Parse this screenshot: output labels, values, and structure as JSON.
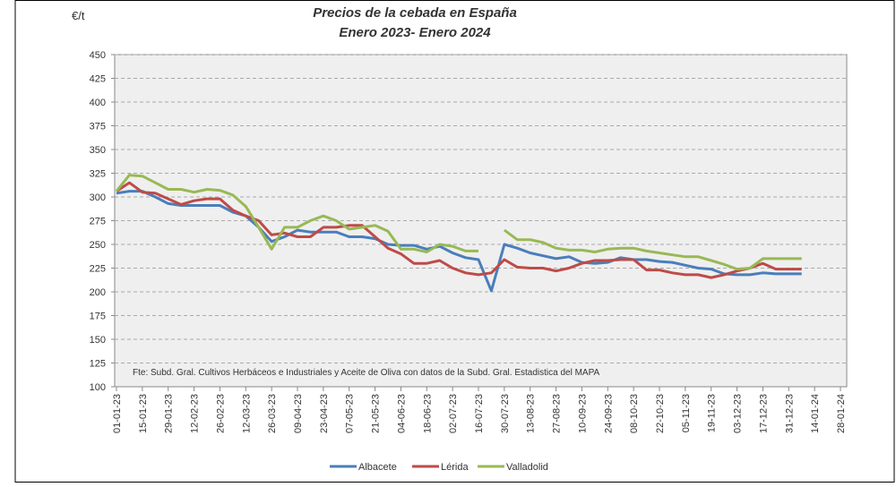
{
  "chart_data": {
    "type": "line",
    "title": "Precios de la cebada en España",
    "subtitle": "Enero 2023- Enero 2024",
    "y_label": "€/t",
    "note": "Fte: Subd. Gral. Cultivos Herbáceos e Industriales y Aceite de Oliva con datos de la Subd. Gral. Estadistica del MAPA",
    "categories": [
      "01-01-23",
      null,
      "15-01-23",
      null,
      "29-01-23",
      null,
      "12-02-23",
      null,
      "26-02-23",
      null,
      "12-03-23",
      null,
      "26-03-23",
      null,
      "09-04-23",
      null,
      "23-04-23",
      null,
      "07-05-23",
      null,
      "21-05-23",
      null,
      "04-06-23",
      null,
      "18-06-23",
      null,
      "02-07-23",
      null,
      "16-07-23",
      null,
      "30-07-23",
      null,
      "13-08-23",
      null,
      "27-08-23",
      null,
      "10-09-23",
      null,
      "24-09-23",
      null,
      "08-10-23",
      null,
      "22-10-23",
      null,
      "05-11-23",
      null,
      "19-11-23",
      null,
      "03-12-23",
      null,
      "17-12-23",
      null,
      "31-12-23",
      null,
      "14-01-24",
      null,
      "28-01-24"
    ],
    "series": [
      {
        "name": "Albacete",
        "color": "#4a7ebb",
        "values": [
          304,
          306,
          306,
          300,
          293,
          291,
          291,
          291,
          291,
          284,
          280,
          268,
          253,
          258,
          265,
          263,
          263,
          263,
          258,
          258,
          256,
          250,
          249,
          249,
          245,
          248,
          241,
          236,
          234,
          201,
          250,
          246,
          241,
          238,
          235,
          237,
          231,
          230,
          231,
          236,
          234,
          234,
          232,
          231,
          228,
          225,
          224,
          219,
          218,
          218,
          220,
          219,
          219,
          219,
          null,
          null,
          null
        ]
      },
      {
        "name": "Lérida",
        "color": "#be4b48",
        "values": [
          306,
          315,
          305,
          304,
          298,
          292,
          296,
          298,
          298,
          286,
          280,
          275,
          260,
          262,
          258,
          258,
          268,
          268,
          270,
          270,
          258,
          246,
          240,
          230,
          230,
          233,
          225,
          220,
          218,
          220,
          234,
          226,
          225,
          225,
          222,
          225,
          230,
          233,
          233,
          234,
          234,
          223,
          223,
          220,
          218,
          218,
          215,
          218,
          222,
          225,
          230,
          224,
          224,
          224,
          null,
          null,
          null
        ]
      },
      {
        "name": "Valladolid",
        "color": "#98b954",
        "values": [
          306,
          323,
          322,
          315,
          308,
          308,
          305,
          308,
          307,
          302,
          290,
          268,
          245,
          268,
          268,
          275,
          280,
          275,
          266,
          268,
          270,
          264,
          245,
          245,
          242,
          250,
          248,
          243,
          243,
          null,
          265,
          255,
          255,
          252,
          246,
          244,
          244,
          242,
          245,
          246,
          246,
          243,
          241,
          239,
          237,
          237,
          233,
          229,
          224,
          225,
          235,
          235,
          235,
          235,
          null,
          null,
          null
        ]
      }
    ],
    "ylim": [
      100,
      450
    ],
    "yticks": [
      100,
      125,
      150,
      175,
      200,
      225,
      250,
      275,
      300,
      325,
      350,
      375,
      400,
      425,
      450
    ],
    "grid": true,
    "legend": "bottom"
  }
}
